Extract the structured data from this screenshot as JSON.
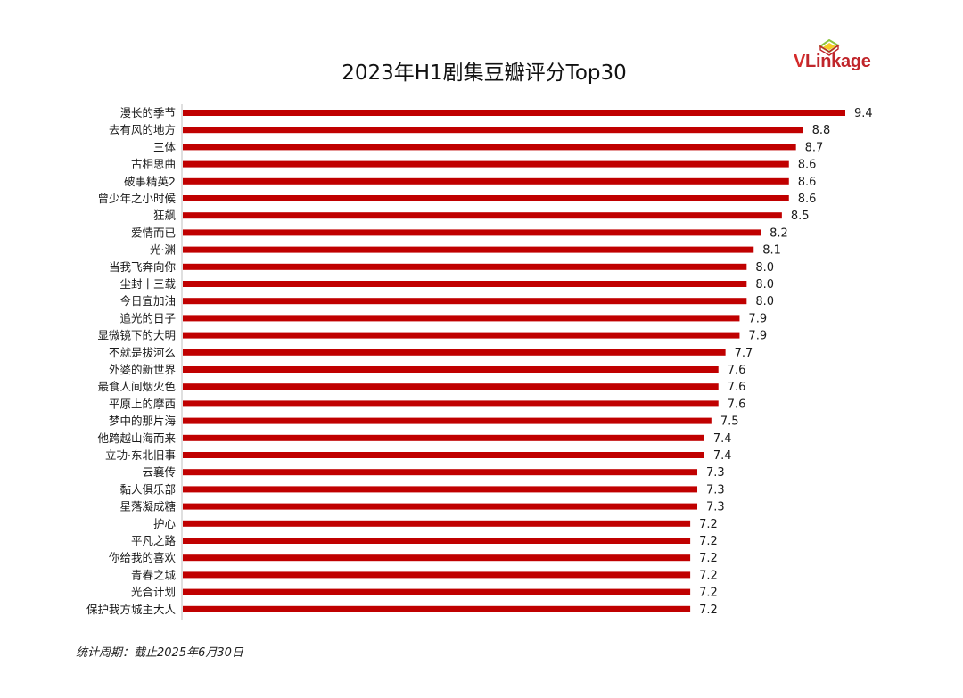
{
  "logo": {
    "text_v": "V",
    "text_rest": "Linkage"
  },
  "footnote": "统计周期：截止2025年6月30日",
  "colors": {
    "bar": "#c00000",
    "axis": "#bfbfbf",
    "logo_red": "#c0262b",
    "logo_green": "#8dc63f",
    "logo_yellow": "#f5c400"
  },
  "chart_data": {
    "type": "bar",
    "orientation": "horizontal",
    "title": "2023年H1剧集豆瓣评分Top30",
    "categories": [
      "漫长的季节",
      "去有风的地方",
      "三体",
      "古相思曲",
      "破事精英2",
      "曾少年之小时候",
      "狂飙",
      "爱情而已",
      "光·渊",
      "当我飞奔向你",
      "尘封十三载",
      "今日宜加油",
      "追光的日子",
      "显微镜下的大明",
      "不就是拔河么",
      "外婆的新世界",
      "最食人间烟火色",
      "平原上的摩西",
      "梦中的那片海",
      "他跨越山海而来",
      "立功·东北旧事",
      "云襄传",
      "黏人俱乐部",
      "星落凝成糖",
      "护心",
      "平凡之路",
      "你给我的喜欢",
      "青春之城",
      "光合计划",
      "保护我方城主大人"
    ],
    "values": [
      9.4,
      8.8,
      8.7,
      8.6,
      8.6,
      8.6,
      8.5,
      8.2,
      8.1,
      8.0,
      8.0,
      8.0,
      7.9,
      7.9,
      7.7,
      7.6,
      7.6,
      7.6,
      7.5,
      7.4,
      7.4,
      7.3,
      7.3,
      7.3,
      7.2,
      7.2,
      7.2,
      7.2,
      7.2,
      7.2
    ],
    "value_labels": [
      "9.4",
      "8.8",
      "8.7",
      "8.6",
      "8.6",
      "8.6",
      "8.5",
      "8.2",
      "8.1",
      "8.0",
      "8.0",
      "8.0",
      "7.9",
      "7.9",
      "7.7",
      "7.6",
      "7.6",
      "7.6",
      "7.5",
      "7.4",
      "7.4",
      "7.3",
      "7.3",
      "7.3",
      "7.2",
      "7.2",
      "7.2",
      "7.2",
      "7.2",
      "7.2"
    ],
    "xlim": [
      0,
      9.4
    ],
    "grid": false,
    "legend": "none"
  }
}
